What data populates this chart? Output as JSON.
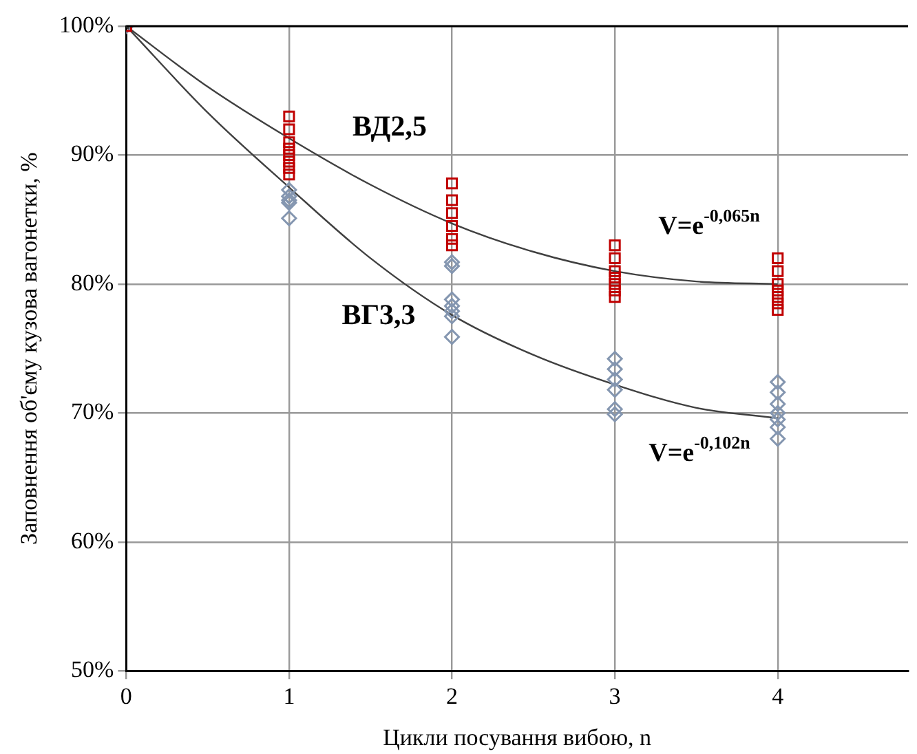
{
  "chart_data": {
    "type": "scatter",
    "xlabel": "Цикли посування вибою, n",
    "ylabel": "Заповнення об'єму кузова вагонетки, %",
    "xlim": [
      0,
      4.8
    ],
    "xticks": [
      0,
      1,
      2,
      3,
      4
    ],
    "ylim": [
      50,
      100
    ],
    "yticks": [
      {
        "value": 50,
        "label": "50%"
      },
      {
        "value": 60,
        "label": "60%"
      },
      {
        "value": 70,
        "label": "70%"
      },
      {
        "value": 80,
        "label": "80%"
      },
      {
        "value": 90,
        "label": "90%"
      },
      {
        "value": 100,
        "label": "100%"
      }
    ],
    "grid": true,
    "legend": false,
    "series": [
      {
        "name": "ВД2,5",
        "marker": "square",
        "color": "#c00000",
        "x": [
          0,
          1,
          1,
          1,
          1,
          1,
          1,
          1,
          1,
          2,
          2,
          2,
          2,
          2,
          2,
          3,
          3,
          3,
          3,
          3,
          3,
          3,
          4,
          4,
          4,
          4,
          4,
          4,
          4
        ],
        "values": [
          100,
          93,
          92,
          91,
          90.5,
          90,
          89.5,
          89,
          88.5,
          87.8,
          86.5,
          85.5,
          84.5,
          83.5,
          83,
          83,
          82,
          81,
          80.5,
          80,
          79.5,
          79,
          82,
          81,
          80,
          79.5,
          79,
          78.5,
          78
        ]
      },
      {
        "name": "ВГ3,3",
        "marker": "diamond",
        "color": "#8496b0",
        "x": [
          0,
          1,
          1,
          1,
          1,
          1,
          2,
          2,
          2,
          2,
          2,
          2,
          2,
          3,
          3,
          3,
          3,
          3,
          3,
          4,
          4,
          4,
          4,
          4,
          4,
          4
        ],
        "values": [
          100,
          87.3,
          86.8,
          86.5,
          86.3,
          85.1,
          81.7,
          81.4,
          78.8,
          78.3,
          77.9,
          77.5,
          75.9,
          74.2,
          73.4,
          72.6,
          71.8,
          70.3,
          69.9,
          72.4,
          71.6,
          70.7,
          70,
          69.5,
          68.9,
          68
        ]
      },
      {
        "type": "line",
        "marker": "none",
        "color": "#404040",
        "x": [
          0,
          0.5,
          1,
          1.5,
          2,
          2.5,
          3,
          3.5,
          4
        ],
        "values": [
          100,
          95.3,
          91.3,
          87.7,
          84.7,
          82.5,
          81,
          80.2,
          80
        ]
      },
      {
        "type": "line",
        "marker": "none",
        "color": "#404040",
        "x": [
          0,
          0.5,
          1,
          1.5,
          2,
          2.5,
          3,
          3.5,
          4
        ],
        "values": [
          100,
          93.3,
          87.5,
          82,
          77.6,
          74.5,
          72.2,
          70.4,
          69.6
        ]
      }
    ],
    "annotations": [
      "V=e$^{-0,065n}$",
      "V=e$^{-0,102n}$"
    ]
  }
}
